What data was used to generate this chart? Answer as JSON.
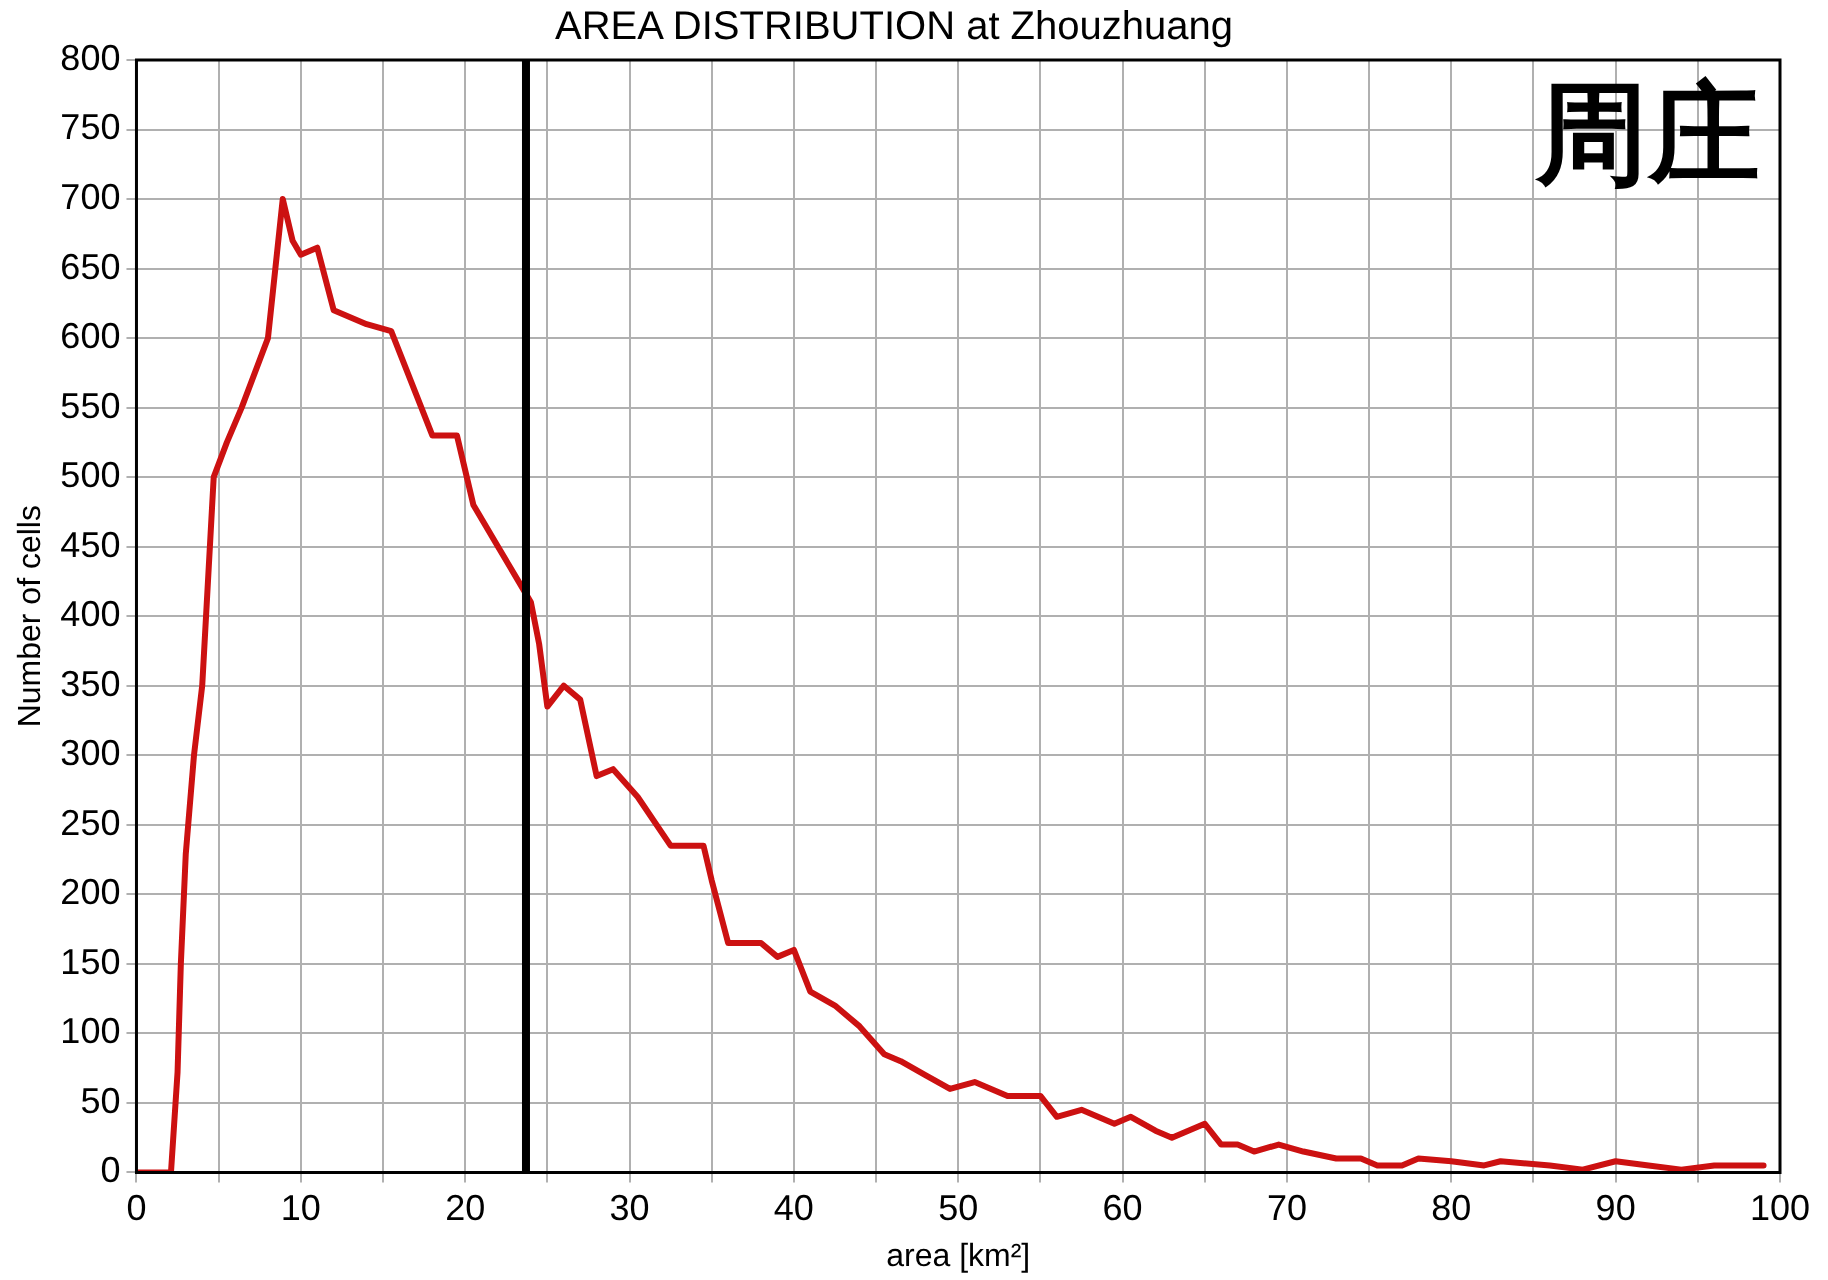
{
  "chart_data": {
    "type": "line",
    "title": "AREA DISTRIBUTION at Zhouzhuang",
    "xlabel": "area [km²]",
    "ylabel": "Number of cells",
    "annotations": [
      "周庄"
    ],
    "series": [
      {
        "color": "#cc1111",
        "x": [
          0,
          2,
          2.1,
          2.5,
          2.7,
          3,
          3.5,
          4,
          4.7,
          5.5,
          6.4,
          7.2,
          8,
          8.9,
          9.5,
          10,
          11,
          12,
          14,
          15.5,
          17,
          18,
          19.5,
          20.5,
          22,
          23.5,
          24,
          24.5,
          25,
          26,
          27,
          28,
          29,
          30.5,
          32.5,
          34.5,
          35,
          36,
          38,
          39,
          40,
          41,
          42.5,
          44,
          45.5,
          46.5,
          48,
          49.5,
          51,
          53,
          55,
          56,
          57.5,
          59.5,
          60.5,
          62,
          63,
          65,
          66,
          67,
          68,
          69.5,
          71,
          73,
          74.5,
          75.5,
          77,
          78,
          80,
          82,
          83,
          86,
          88,
          90,
          92,
          94,
          96,
          99
        ],
        "values": [
          0,
          0,
          0,
          72,
          150,
          229,
          300,
          350,
          500,
          525,
          550,
          575,
          600,
          700,
          670,
          660,
          665,
          620,
          610,
          605,
          560,
          530,
          530,
          480,
          450,
          420,
          410,
          380,
          335,
          350,
          340,
          285,
          290,
          270,
          235,
          235,
          210,
          165,
          165,
          155,
          160,
          130,
          120,
          105,
          85,
          80,
          70,
          60,
          65,
          55,
          55,
          40,
          45,
          35,
          40,
          30,
          25,
          35,
          20,
          20,
          15,
          20,
          15,
          10,
          10,
          5,
          5,
          10,
          8,
          5,
          8,
          5,
          2,
          8,
          5,
          2,
          5,
          5
        ]
      }
    ],
    "ref_lines": [
      {
        "axis": "x",
        "value": 23.7,
        "color": "#000000"
      }
    ],
    "xlim": [
      0,
      100
    ],
    "xticks": [
      0,
      {
        "value": 5,
        "label": null
      },
      10,
      {
        "value": 15,
        "label": null
      },
      20,
      {
        "value": 25,
        "label": null
      },
      30,
      {
        "value": 35,
        "label": null
      },
      40,
      {
        "value": 45,
        "label": null
      },
      50,
      {
        "value": 55,
        "label": null
      },
      60,
      {
        "value": 65,
        "label": null
      },
      70,
      {
        "value": 75,
        "label": null
      },
      80,
      {
        "value": 85,
        "label": null
      },
      90,
      {
        "value": 95,
        "label": null
      },
      100
    ],
    "ylim": [
      0,
      800
    ],
    "yticks": [
      0,
      50,
      100,
      150,
      200,
      250,
      300,
      350,
      400,
      450,
      500,
      550,
      600,
      650,
      700,
      750,
      800
    ],
    "grid": true,
    "legend": false,
    "marker": "none",
    "line_style": "solid"
  }
}
